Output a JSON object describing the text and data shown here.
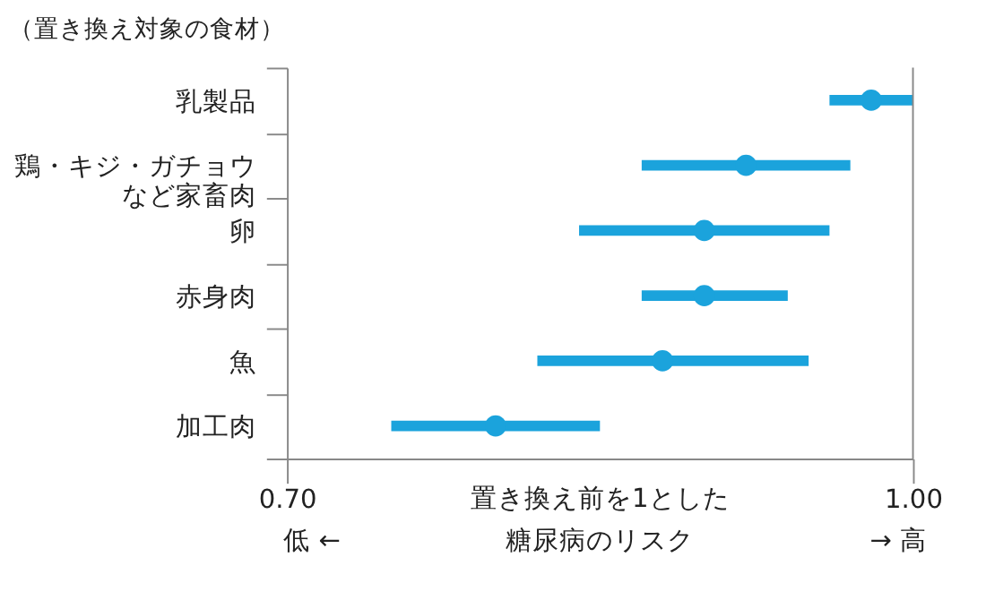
{
  "chart_data": {
    "type": "scatter",
    "orientation": "horizontal",
    "ylabel": "（置き換え対象の食材）",
    "xlabel": "置き換え前を1とした糖尿病のリスク",
    "categories": [
      "乳製品",
      "鶏・キジ・ガチョウなど家畜肉",
      "卵",
      "赤身肉",
      "魚",
      "加工肉"
    ],
    "series": [
      {
        "color": "#1ba3dc",
        "values": [
          0.98,
          0.92,
          0.9,
          0.9,
          0.88,
          0.8
        ],
        "errors": [
          [
            0.96,
            1.0
          ],
          [
            0.87,
            0.97
          ],
          [
            0.84,
            0.96
          ],
          [
            0.87,
            0.94
          ],
          [
            0.82,
            0.95
          ],
          [
            0.75,
            0.85
          ]
        ]
      }
    ],
    "xlim": [
      0.7,
      1.0
    ],
    "xticks": [
      {
        "value": 0.7,
        "label": "0.70"
      },
      {
        "value": 1.0,
        "label": "1.00"
      }
    ],
    "ref_lines": [
      {
        "axis": "x",
        "value": 1.0,
        "color": "#888888"
      }
    ],
    "annotations": [
      "低 ←",
      "→ 高"
    ],
    "marker": "circle",
    "grid": false
  }
}
